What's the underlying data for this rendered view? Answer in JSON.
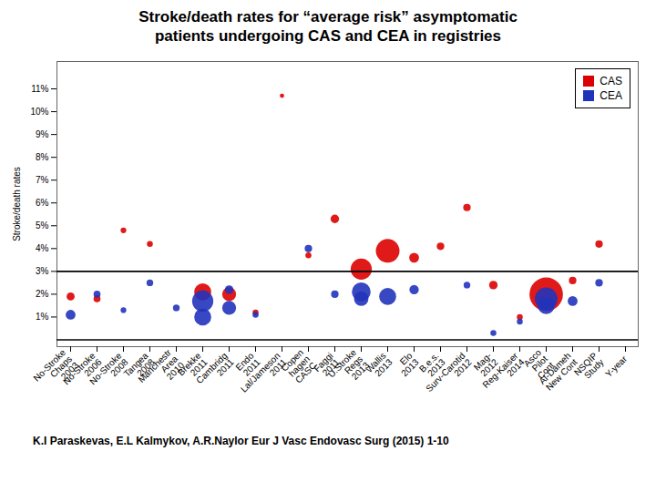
{
  "chart_data": {
    "type": "scatter",
    "title": "Stroke/death rates for “average risk” asymptomatic\npatients undergoing CAS and CEA in registries",
    "ylabel": "Stroke/death rates",
    "annotations": [
      "K.I Paraskevas, E.L Kalmykov, A.R.Naylor  Eur J Vasc Endovasc Surg (2015)  1-10"
    ],
    "categories": [
      "No-Stroke\nChaps\n2003",
      "No-Stroke\n2006",
      "No-Stroke\n2008",
      "Tangea\n2008",
      "Manchestr\nArea\n2010",
      "Brekke\n2011",
      "Cambridg\n2011",
      "Endo\n2011",
      "Lal/Jameson\n2011",
      "Copen\nhagen\nCASC",
      "Faggi\n2011",
      "U.Stroke\nRegs\n2013",
      "Wallis\n2013",
      "Elo\n2013",
      "B.e.s.\n2013",
      "Surv-Carotid\n2012",
      "Mag-\n2012",
      "Reg-Kaiser\n2014",
      "Asco\nPilot\nCont",
      "Al-Dameh\nNew Cont",
      "NSQIP\nStudy",
      "Y-year"
    ],
    "series": [
      {
        "name": "CAS",
        "color": "#dd0000",
        "x": [
          "No-Stroke\nChaps\n2003",
          "No-Stroke\n2006",
          "No-Stroke\n2008",
          "Tangea\n2008",
          "Brekke\n2011",
          "Cambridg\n2011",
          "Endo\n2011",
          "Lal/Jameson\n2011",
          "Copen\nhagen\nCASC",
          "Faggi\n2011",
          "U.Stroke\nRegs\n2013",
          "Wallis\n2013",
          "Elo\n2013",
          "B.e.s.\n2013",
          "Surv-Carotid\n2012",
          "Mag-\n2012",
          "Reg-Kaiser\n2014",
          "Asco\nPilot\nCont",
          "Al-Dameh\nNew Cont",
          "NSQIP\nStudy"
        ],
        "values": [
          1.9,
          1.8,
          4.8,
          4.2,
          2.1,
          2.0,
          1.2,
          10.7,
          3.7,
          5.3,
          3.1,
          3.9,
          3.6,
          4.1,
          5.8,
          2.4,
          1.0,
          2.0,
          2.6,
          4.2
        ],
        "sizes": [
          40,
          30,
          20,
          22,
          180,
          120,
          22,
          12,
          22,
          45,
          280,
          350,
          60,
          35,
          35,
          45,
          22,
          700,
          35,
          35
        ]
      },
      {
        "name": "CEA",
        "color": "#2233bb",
        "x": [
          "No-Stroke\nChaps\n2003",
          "No-Stroke\n2006",
          "No-Stroke\n2008",
          "Tangea\n2008",
          "Manchestr\nArea\n2010",
          "Brekke\n2011",
          "Brekke\n2011",
          "Cambridg\n2011",
          "Cambridg\n2011",
          "Endo\n2011",
          "Copen\nhagen\nCASC",
          "Faggi\n2011",
          "U.Stroke\nRegs\n2013",
          "U.Stroke\nRegs\n2013",
          "Wallis\n2013",
          "Elo\n2013",
          "Surv-Carotid\n2012",
          "Mag-\n2012",
          "Reg-Kaiser\n2014",
          "Asco\nPilot\nCont",
          "Asco\nPilot\nCont",
          "Al-Dameh\nNew Cont",
          "NSQIP\nStudy"
        ],
        "values": [
          1.1,
          2.0,
          1.3,
          2.5,
          1.4,
          1.7,
          1.0,
          1.4,
          2.2,
          1.1,
          4.0,
          2.0,
          2.1,
          1.8,
          1.9,
          2.2,
          2.4,
          0.3,
          0.8,
          1.8,
          1.5,
          1.7,
          2.5
        ],
        "sizes": [
          60,
          30,
          20,
          28,
          28,
          280,
          180,
          120,
          45,
          22,
          35,
          35,
          220,
          130,
          180,
          55,
          28,
          22,
          22,
          320,
          180,
          60,
          35
        ]
      }
    ],
    "reference_lines": [
      3.0,
      0.0
    ],
    "ylim": [
      -0.3,
      12.2
    ],
    "yticks": [
      {
        "value": 1,
        "label": "1%"
      },
      {
        "value": 2,
        "label": "2%"
      },
      {
        "value": 3,
        "label": "3%"
      },
      {
        "value": 4,
        "label": "4%"
      },
      {
        "value": 5,
        "label": "5%"
      },
      {
        "value": 6,
        "label": "6%"
      },
      {
        "value": 7,
        "label": "7%"
      },
      {
        "value": 8,
        "label": "8%"
      },
      {
        "value": 9,
        "label": "9%"
      },
      {
        "value": 10,
        "label": "10%"
      },
      {
        "value": 11,
        "label": "11%"
      }
    ],
    "grid": false,
    "legend": "upper right"
  }
}
